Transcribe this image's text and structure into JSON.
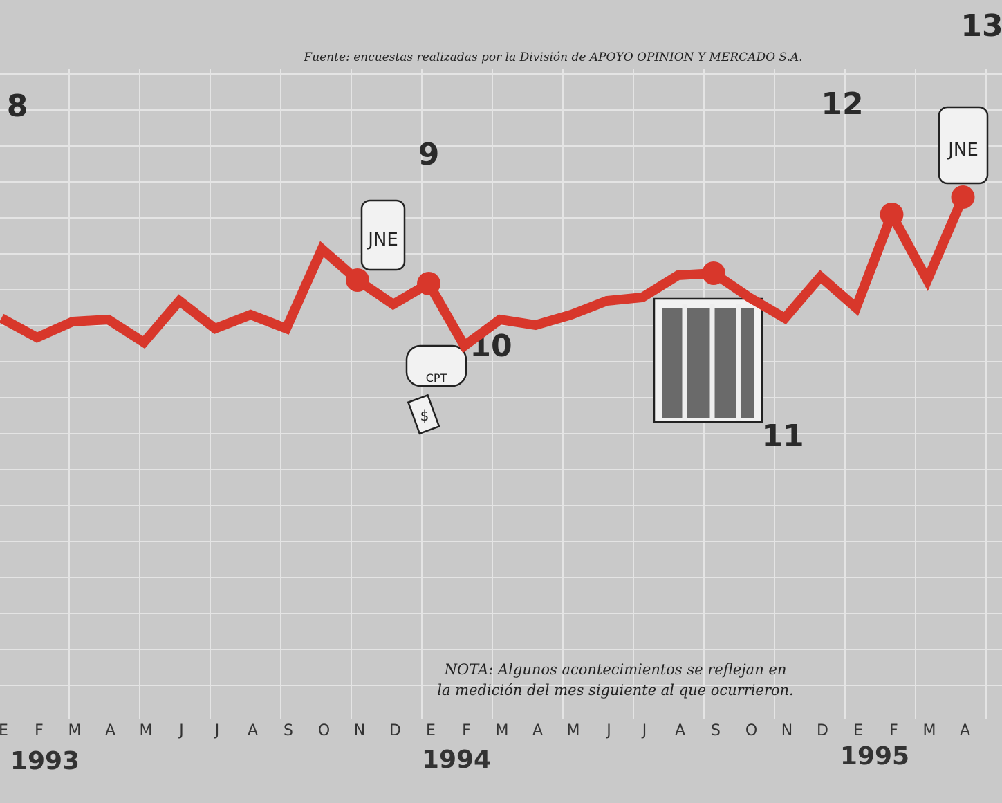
{
  "chart_data": {
    "type": "line",
    "source": "Fuente: encuestas realizadas por la División de APOYO OPINION Y MERCADO S.A.",
    "note": [
      "NOTA: Algunos acontecimientos se reflejan en",
      "la medición del mes siguiente al que ocurrieron."
    ],
    "categories": [
      "E",
      "F",
      "M",
      "A",
      "M",
      "J",
      "J",
      "A",
      "S",
      "O",
      "N",
      "D",
      "E",
      "F",
      "M",
      "A",
      "M",
      "J",
      "J",
      "A",
      "S",
      "O",
      "N",
      "D",
      "E",
      "F",
      "M",
      "A"
    ],
    "years": [
      "1993",
      "1994",
      "1995"
    ],
    "values": [
      48,
      42.4,
      47,
      47.6,
      41,
      53,
      45,
      49,
      45,
      68,
      59,
      52,
      58,
      40,
      47.6,
      46,
      49,
      53,
      54,
      60.4,
      61,
      54,
      48,
      60,
      51,
      78,
      59,
      83
    ],
    "color": "#d8372b",
    "ylim": [
      0,
      140
    ],
    "annotations": [
      "8",
      "9",
      "10",
      "11",
      "12",
      "13"
    ],
    "illustration_labels": [
      "JNE",
      "JNE",
      "CPT",
      "$"
    ]
  }
}
